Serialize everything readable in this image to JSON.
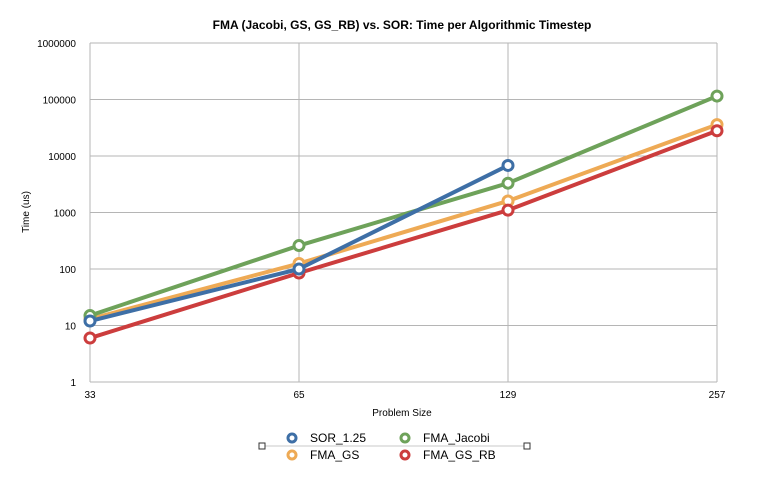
{
  "chart_data": {
    "type": "line",
    "title": "FMA (Jacobi, GS, GS_RB) vs. SOR: Time per Algorithmic Timestep",
    "xlabel": "Problem Size",
    "ylabel": "Time (us)",
    "y_scale": "log",
    "ylim": [
      1,
      1000000
    ],
    "grid": true,
    "legend_position": "bottom",
    "categories": [
      "33",
      "65",
      "129",
      "257"
    ],
    "y_ticks": [
      "1",
      "10",
      "100",
      "1000",
      "10000",
      "100000",
      "1000000"
    ],
    "series": [
      {
        "name": "SOR_1.25",
        "color": "#3e6fa6",
        "values": [
          12,
          100,
          6800,
          null
        ]
      },
      {
        "name": "FMA_GS",
        "color": "#eeaa55",
        "values": [
          13,
          125,
          1600,
          36000
        ]
      },
      {
        "name": "FMA_Jacobi",
        "color": "#6ea25a",
        "values": [
          15,
          260,
          3300,
          115000
        ]
      },
      {
        "name": "FMA_GS_RB",
        "color": "#cc3d3d",
        "values": [
          6,
          85,
          1100,
          28000
        ]
      }
    ]
  }
}
